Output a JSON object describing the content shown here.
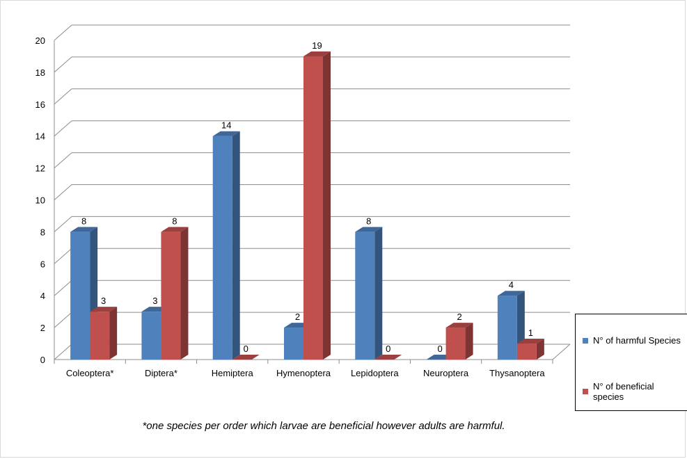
{
  "chart_data": {
    "type": "bar",
    "categories": [
      "Coleoptera*",
      "Diptera*",
      "Hemiptera",
      "Hymenoptera",
      "Lepidoptera",
      "Neuroptera",
      "Thysanoptera"
    ],
    "series": [
      {
        "name": "N° of harmful Species",
        "values": [
          8,
          3,
          14,
          2,
          8,
          0,
          4
        ],
        "color": "#4f81bd"
      },
      {
        "name": "N° of beneficial species",
        "values": [
          3,
          8,
          0,
          19,
          0,
          2,
          1
        ],
        "color": "#c0504d"
      }
    ],
    "yticks": [
      "0",
      "2",
      "4",
      "6",
      "8",
      "10",
      "12",
      "14",
      "16",
      "18",
      "20"
    ],
    "ylim": [
      0,
      20
    ],
    "grid": true,
    "style": "3d-clustered-column",
    "legend_position": "right"
  },
  "footnote": "*one species per order which larvae are beneficial however adults are harmful."
}
